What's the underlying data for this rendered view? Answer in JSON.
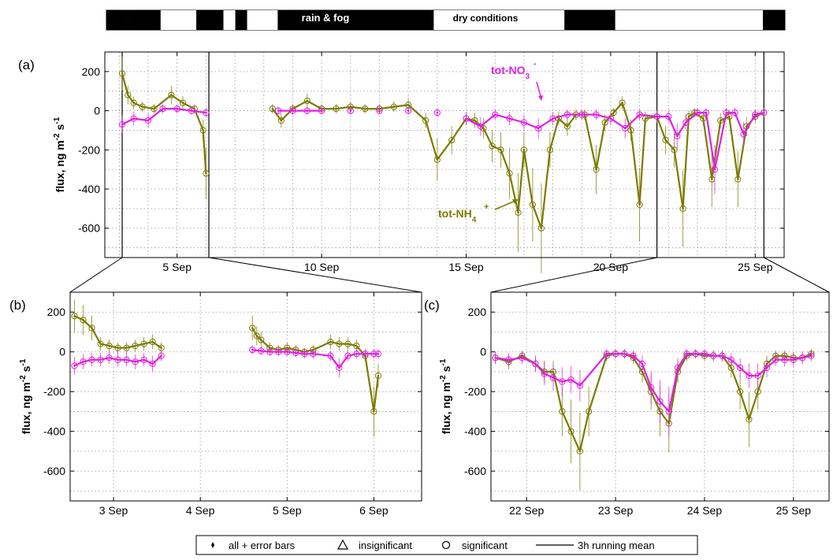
{
  "colors": {
    "nh4": "#7b7b00",
    "no3": "#e020e0",
    "bar_dark": "#000000",
    "bar_light": "#ffffff"
  },
  "weather_bar": {
    "labels": {
      "rain_fog": "rain & fog",
      "dry": "dry conditions"
    },
    "segments": [
      {
        "start": 1.3,
        "end": 3.2,
        "state": "dark"
      },
      {
        "start": 3.2,
        "end": 5.3,
        "state": "light"
      },
      {
        "start": 5.3,
        "end": 6.9,
        "state": "dark"
      },
      {
        "start": 6.9,
        "end": 7.6,
        "state": "light"
      },
      {
        "start": 7.6,
        "end": 8.3,
        "state": "dark"
      },
      {
        "start": 8.3,
        "end": 10.1,
        "state": "light"
      },
      {
        "start": 10.1,
        "end": 19.3,
        "state": "dark"
      },
      {
        "start": 19.3,
        "end": 27.0,
        "state": "light"
      },
      {
        "start": 27.0,
        "end": 30.0,
        "state": "dark"
      },
      {
        "start": 30.0,
        "end": 38.7,
        "state": "light"
      },
      {
        "start": 38.7,
        "end": 40.0,
        "state": "dark"
      }
    ]
  },
  "annotations": {
    "no3_label": "tot-NO",
    "no3_sub": "3",
    "no3_sup": "-",
    "nh4_label": "tot-NH",
    "nh4_sub": "4",
    "nh4_sup": "+"
  },
  "legend": {
    "items": [
      "all + error bars",
      "insignificant",
      "significant",
      "3h running mean"
    ]
  },
  "chart_data": [
    {
      "type": "line",
      "panel_label": "(a)",
      "ylabel": "flux, ng m-2 s-1",
      "xlim": [
        2.5,
        26.0
      ],
      "ylim": [
        -750,
        300
      ],
      "xticks": [
        5,
        10,
        15,
        20,
        25
      ],
      "xticklabels": [
        "5 Sep",
        "10 Sep",
        "15 Sep",
        "20 Sep",
        "25 Sep"
      ],
      "yticks": [
        200,
        0,
        -200,
        -400,
        -600
      ],
      "yticklabels": [
        "200",
        "0",
        "-200",
        "-400",
        "-600"
      ],
      "grid": true,
      "zoom_boxes": [
        [
          3.1,
          6.1
        ],
        [
          21.6,
          25.3
        ]
      ],
      "series": [
        {
          "name": "tot-NH4+",
          "x": [
            3.1,
            3.3,
            3.5,
            3.8,
            4.2,
            4.8,
            5.2,
            5.6,
            5.9,
            6.0,
            8.3,
            8.6,
            9.0,
            9.5,
            10.0,
            10.5,
            11.0,
            11.5,
            12.0,
            12.5,
            13.0,
            13.6,
            14.0,
            14.5,
            15.0,
            15.3,
            15.6,
            15.9,
            16.2,
            16.5,
            16.8,
            17.0,
            17.3,
            17.6,
            17.9,
            18.2,
            18.5,
            18.8,
            19.1,
            19.5,
            19.8,
            20.1,
            20.4,
            20.7,
            21.0,
            21.2,
            21.6,
            21.9,
            22.2,
            22.5,
            22.7,
            22.9,
            23.2,
            23.5,
            23.8,
            24.1,
            24.4,
            24.7,
            25.0,
            25.3
          ],
          "y": [
            190,
            80,
            40,
            20,
            10,
            80,
            40,
            10,
            -100,
            -320,
            10,
            -50,
            10,
            50,
            10,
            10,
            20,
            10,
            10,
            20,
            30,
            -50,
            -250,
            -150,
            -40,
            -50,
            -90,
            -180,
            -200,
            -320,
            -520,
            -200,
            -480,
            -600,
            -200,
            -40,
            -80,
            -20,
            -20,
            -300,
            -60,
            -10,
            40,
            -100,
            -480,
            -40,
            -30,
            -150,
            -200,
            -500,
            -30,
            -10,
            -40,
            -350,
            -50,
            -30,
            -350,
            -80,
            -30,
            -10
          ]
        },
        {
          "name": "tot-NO3-",
          "x": [
            3.1,
            3.5,
            4.0,
            4.5,
            5.0,
            5.5,
            6.0,
            8.5,
            9.0,
            9.5,
            10.0,
            11.0,
            12.0,
            13.0,
            14.0,
            15.0,
            15.5,
            16.0,
            16.5,
            17.0,
            17.5,
            18.0,
            18.5,
            19.0,
            19.5,
            20.0,
            20.5,
            21.0,
            21.6,
            22.0,
            22.3,
            22.6,
            23.0,
            23.3,
            23.6,
            24.0,
            24.3,
            24.6,
            25.0,
            25.3
          ],
          "y": [
            -70,
            -40,
            -50,
            10,
            10,
            0,
            -10,
            0,
            0,
            0,
            0,
            0,
            0,
            0,
            -10,
            -40,
            -80,
            -20,
            -40,
            -60,
            -90,
            -40,
            -20,
            -20,
            -20,
            -40,
            -90,
            -20,
            -30,
            -30,
            -130,
            -60,
            -10,
            -10,
            -300,
            -10,
            -10,
            -120,
            -20,
            -10
          ]
        }
      ]
    },
    {
      "type": "line",
      "panel_label": "(b)",
      "ylabel": "flux, ng m-2 s-1",
      "xlim": [
        2.5,
        6.55
      ],
      "ylim": [
        -750,
        300
      ],
      "xticks": [
        3,
        4,
        5,
        6
      ],
      "xticklabels": [
        "3 Sep",
        "4 Sep",
        "5 Sep",
        "6 Sep"
      ],
      "yticks": [
        200,
        0,
        -200,
        -400,
        -600
      ],
      "yticklabels": [
        "200",
        "0",
        "-200",
        "-400",
        "-600"
      ],
      "grid": true,
      "series": [
        {
          "name": "tot-NH4+",
          "x": [
            2.55,
            2.65,
            2.75,
            2.85,
            2.95,
            3.05,
            3.15,
            3.25,
            3.35,
            3.45,
            3.55,
            4.6,
            4.65,
            4.7,
            4.8,
            4.9,
            5.0,
            5.1,
            5.2,
            5.3,
            5.5,
            5.6,
            5.7,
            5.8,
            5.9,
            6.0,
            6.05
          ],
          "y": [
            180,
            160,
            120,
            40,
            30,
            20,
            20,
            30,
            40,
            50,
            20,
            120,
            80,
            60,
            20,
            10,
            20,
            10,
            0,
            10,
            50,
            40,
            40,
            30,
            -20,
            -300,
            -120
          ]
        },
        {
          "name": "tot-NO3-",
          "x": [
            2.55,
            2.65,
            2.75,
            2.85,
            2.95,
            3.05,
            3.15,
            3.25,
            3.35,
            3.45,
            3.55,
            4.6,
            4.7,
            4.8,
            4.9,
            5.0,
            5.1,
            5.2,
            5.3,
            5.5,
            5.6,
            5.7,
            5.8,
            5.9,
            6.0,
            6.05
          ],
          "y": [
            -70,
            -50,
            -40,
            -40,
            -30,
            -40,
            -40,
            -50,
            -40,
            -60,
            -20,
            10,
            5,
            0,
            0,
            0,
            -5,
            -10,
            -10,
            -20,
            -80,
            -20,
            -10,
            -10,
            -10,
            -10
          ]
        }
      ]
    },
    {
      "type": "line",
      "panel_label": "(c)",
      "ylabel": "flux, ng m-2 s-1",
      "xlim": [
        21.6,
        25.4
      ],
      "ylim": [
        -750,
        300
      ],
      "xticks": [
        22,
        23,
        24,
        25
      ],
      "xticklabels": [
        "22 Sep",
        "23 Sep",
        "24 Sep",
        "25 Sep"
      ],
      "yticks": [
        200,
        0,
        -200,
        -400,
        -600
      ],
      "yticklabels": [
        "200",
        "0",
        "-200",
        "-400",
        "-600"
      ],
      "grid": true,
      "series": [
        {
          "name": "tot-NH4+",
          "x": [
            21.65,
            21.8,
            21.95,
            22.1,
            22.2,
            22.3,
            22.4,
            22.5,
            22.6,
            22.7,
            22.9,
            23.0,
            23.1,
            23.2,
            23.3,
            23.4,
            23.5,
            23.6,
            23.7,
            23.8,
            23.9,
            24.0,
            24.1,
            24.2,
            24.3,
            24.4,
            24.5,
            24.6,
            24.7,
            24.8,
            24.9,
            25.0,
            25.1,
            25.2
          ],
          "y": [
            -30,
            -50,
            -20,
            -60,
            -100,
            -100,
            -300,
            -400,
            -500,
            -300,
            -20,
            -10,
            -10,
            -30,
            -100,
            -200,
            -300,
            -360,
            -100,
            -20,
            -10,
            -20,
            -20,
            -20,
            -80,
            -200,
            -340,
            -200,
            -60,
            -20,
            -20,
            -30,
            -30,
            -10
          ]
        },
        {
          "name": "tot-NO3-",
          "x": [
            21.65,
            21.8,
            21.95,
            22.1,
            22.2,
            22.3,
            22.4,
            22.5,
            22.6,
            22.9,
            23.0,
            23.1,
            23.2,
            23.3,
            23.4,
            23.5,
            23.6,
            23.7,
            23.8,
            23.9,
            24.0,
            24.1,
            24.2,
            24.3,
            24.4,
            24.5,
            24.6,
            24.7,
            24.8,
            24.9,
            25.0,
            25.1,
            25.2
          ],
          "y": [
            -30,
            -40,
            -30,
            -60,
            -110,
            -130,
            -150,
            -140,
            -170,
            -10,
            -10,
            -10,
            -20,
            -60,
            -180,
            -250,
            -300,
            -80,
            -10,
            -10,
            -10,
            -20,
            -20,
            -40,
            -80,
            -120,
            -120,
            -80,
            -40,
            -40,
            -40,
            -30,
            -20
          ]
        }
      ]
    }
  ]
}
